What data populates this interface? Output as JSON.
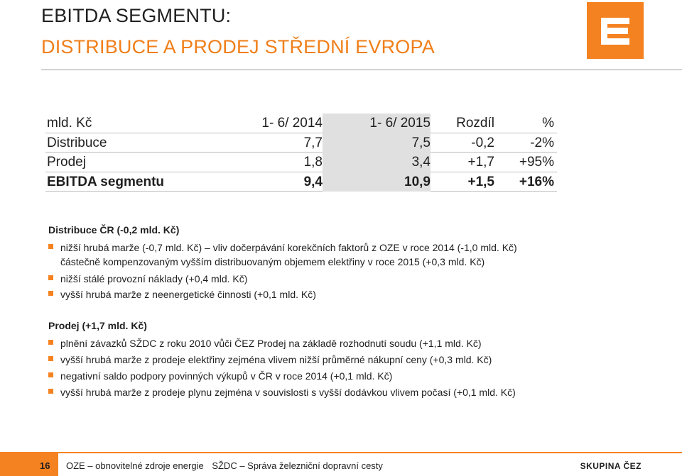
{
  "title_line1": "EBITDA SEGMENTU:",
  "title_line2": "DISTRIBUCE A PRODEJ STŘEDNÍ EVROPA",
  "table": {
    "header": [
      "mld. Kč",
      "1- 6/ 2014",
      "1- 6/ 2015",
      "Rozdíl",
      "%"
    ],
    "rows": [
      [
        "Distribuce",
        "7,7",
        "7,5",
        "-0,2",
        "-2%"
      ],
      [
        "Prodej",
        "1,8",
        "3,4",
        "+1,7",
        "+95%"
      ],
      [
        "EBITDA segmentu",
        "9,4",
        "10,9",
        "+1,5",
        "+16%"
      ]
    ]
  },
  "section1": {
    "heading": "Distribuce ČR (-0,2 mld. Kč)",
    "bullets": [
      "nižší hrubá marže (-0,7 mld. Kč) – vliv dočerpávání korekčních faktorů z OZE v roce 2014 (-1,0 mld. Kč)",
      "částečně kompenzovaným vyšším distribuovaným objemem elektřiny v roce 2015 (+0,3 mld. Kč)",
      "nižší stálé provozní náklady (+0,4 mld. Kč)",
      "vyšší hrubá marže z neenergetické činnosti (+0,1 mld. Kč)"
    ]
  },
  "section2": {
    "heading": "Prodej (+1,7 mld. Kč)",
    "bullets": [
      "plnění závazků SŽDC z roku 2010 vůči ČEZ Prodej na základě rozhodnutí soudu (+1,1 mld. Kč)",
      "vyšší hrubá marže z prodeje elektřiny zejména vlivem nižší průměrné nákupní ceny (+0,3 mld. Kč)",
      "negativní saldo podpory povinných výkupů v ČR v roce 2014 (+0,1 mld. Kč)",
      "vyšší hrubá marže z prodeje plynu zejména v souvislosti s vyšší dodávkou vlivem počasí (+0,1 mld. Kč)"
    ]
  },
  "footer": {
    "page_number": "16",
    "note1": "OZE – obnovitelné zdroje energie",
    "note2": "SŽDC – Správa železniční dopravní cesty",
    "brand": "SKUPINA ČEZ"
  },
  "colors": {
    "accent": "#f58220",
    "title2": "#f07f1a",
    "shade": "#e0e0e0"
  },
  "logo_icon": "cez-logo"
}
